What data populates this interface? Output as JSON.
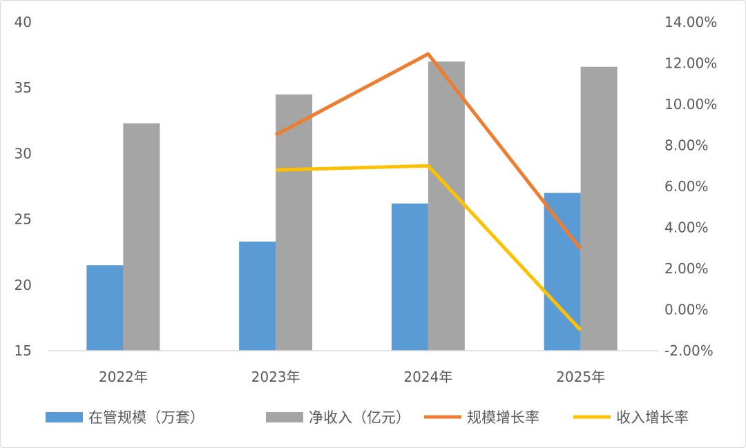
{
  "chart_data": {
    "type": "bar+line",
    "categories": [
      "2022年",
      "2023年",
      "2024年",
      "2025年"
    ],
    "left_axis": {
      "ylim": [
        15,
        40
      ],
      "ticks": [
        "15",
        "20",
        "25",
        "30",
        "35",
        "40"
      ]
    },
    "right_axis": {
      "ylim": [
        -2,
        14
      ],
      "ticks": [
        "-2.00%",
        "0.00%",
        "2.00%",
        "4.00%",
        "6.00%",
        "8.00%",
        "10.00%",
        "12.00%",
        "14.00%"
      ]
    },
    "series": [
      {
        "name": "在管规模（万套）",
        "kind": "bar",
        "axis": "left",
        "color": "#5b9bd5",
        "values": [
          21.5,
          23.3,
          26.2,
          27.0
        ]
      },
      {
        "name": "净收入（亿元）",
        "kind": "bar",
        "axis": "left",
        "color": "#a5a5a5",
        "values": [
          32.3,
          34.5,
          37.0,
          36.6
        ]
      },
      {
        "name": "规模增长率",
        "kind": "line",
        "axis": "right",
        "color": "#ed7d31",
        "values": [
          null,
          8.5,
          12.45,
          2.95
        ]
      },
      {
        "name": "收入增长率",
        "kind": "line",
        "axis": "right",
        "color": "#ffc000",
        "values": [
          null,
          6.8,
          7.0,
          -1.0
        ]
      }
    ],
    "grid": false,
    "legend": "bottom"
  }
}
